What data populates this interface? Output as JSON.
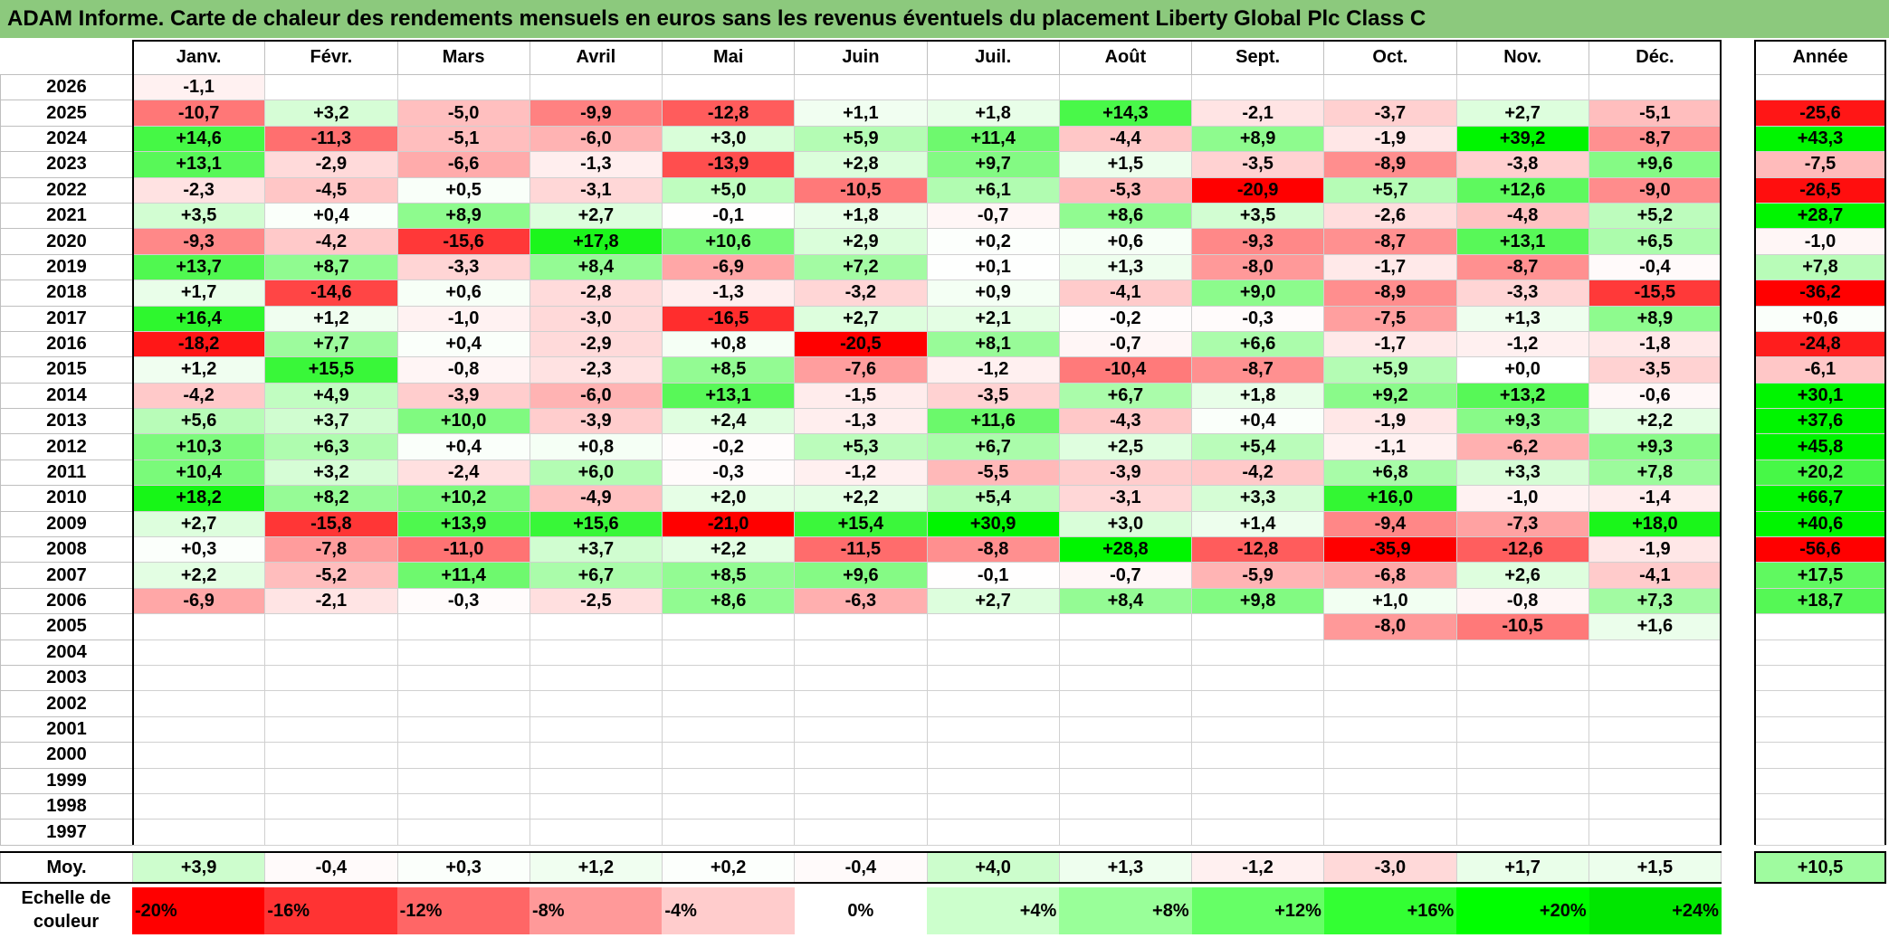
{
  "title": "ADAM Informe. Carte de chaleur des rendements mensuels en euros sans les revenus éventuels du placement Liberty Global Plc Class C",
  "chart_data": {
    "type": "heatmap",
    "title": "ADAM Informe. Carte de chaleur des rendements mensuels en euros sans les revenus éventuels du placement Liberty Global Plc Class C",
    "months": [
      "Janv.",
      "Févr.",
      "Mars",
      "Avril",
      "Mai",
      "Juin",
      "Juil.",
      "Août",
      "Sept.",
      "Oct.",
      "Nov.",
      "Déc."
    ],
    "year_column_label": "Année",
    "rows": [
      {
        "year": "2026",
        "months": [
          "-1,1",
          "",
          "",
          "",
          "",
          "",
          "",
          "",
          "",
          "",
          "",
          ""
        ],
        "annual": ""
      },
      {
        "year": "2025",
        "months": [
          "-10,7",
          "+3,2",
          "-5,0",
          "-9,9",
          "-12,8",
          "+1,1",
          "+1,8",
          "+14,3",
          "-2,1",
          "-3,7",
          "+2,7",
          "-5,1"
        ],
        "annual": "-25,6"
      },
      {
        "year": "2024",
        "months": [
          "+14,6",
          "-11,3",
          "-5,1",
          "-6,0",
          "+3,0",
          "+5,9",
          "+11,4",
          "-4,4",
          "+8,9",
          "-1,9",
          "+39,2",
          "-8,7"
        ],
        "annual": "+43,3"
      },
      {
        "year": "2023",
        "months": [
          "+13,1",
          "-2,9",
          "-6,6",
          "-1,3",
          "-13,9",
          "+2,8",
          "+9,7",
          "+1,5",
          "-3,5",
          "-8,9",
          "-3,8",
          "+9,6"
        ],
        "annual": "-7,5"
      },
      {
        "year": "2022",
        "months": [
          "-2,3",
          "-4,5",
          "+0,5",
          "-3,1",
          "+5,0",
          "-10,5",
          "+6,1",
          "-5,3",
          "-20,9",
          "+5,7",
          "+12,6",
          "-9,0"
        ],
        "annual": "-26,5"
      },
      {
        "year": "2021",
        "months": [
          "+3,5",
          "+0,4",
          "+8,9",
          "+2,7",
          "-0,1",
          "+1,8",
          "-0,7",
          "+8,6",
          "+3,5",
          "-2,6",
          "-4,8",
          "+5,2"
        ],
        "annual": "+28,7"
      },
      {
        "year": "2020",
        "months": [
          "-9,3",
          "-4,2",
          "-15,6",
          "+17,8",
          "+10,6",
          "+2,9",
          "+0,2",
          "+0,6",
          "-9,3",
          "-8,7",
          "+13,1",
          "+6,5"
        ],
        "annual": "-1,0"
      },
      {
        "year": "2019",
        "months": [
          "+13,7",
          "+8,7",
          "-3,3",
          "+8,4",
          "-6,9",
          "+7,2",
          "+0,1",
          "+1,3",
          "-8,0",
          "-1,7",
          "-8,7",
          "-0,4"
        ],
        "annual": "+7,8"
      },
      {
        "year": "2018",
        "months": [
          "+1,7",
          "-14,6",
          "+0,6",
          "-2,8",
          "-1,3",
          "-3,2",
          "+0,9",
          "-4,1",
          "+9,0",
          "-8,9",
          "-3,3",
          "-15,5"
        ],
        "annual": "-36,2"
      },
      {
        "year": "2017",
        "months": [
          "+16,4",
          "+1,2",
          "-1,0",
          "-3,0",
          "-16,5",
          "+2,7",
          "+2,1",
          "-0,2",
          "-0,3",
          "-7,5",
          "+1,3",
          "+8,9"
        ],
        "annual": "+0,6"
      },
      {
        "year": "2016",
        "months": [
          "-18,2",
          "+7,7",
          "+0,4",
          "-2,9",
          "+0,8",
          "-20,5",
          "+8,1",
          "-0,7",
          "+6,6",
          "-1,7",
          "-1,2",
          "-1,8"
        ],
        "annual": "-24,8"
      },
      {
        "year": "2015",
        "months": [
          "+1,2",
          "+15,5",
          "-0,8",
          "-2,3",
          "+8,5",
          "-7,6",
          "-1,2",
          "-10,4",
          "-8,7",
          "+5,9",
          "+0,0",
          "-3,5"
        ],
        "annual": "-6,1"
      },
      {
        "year": "2014",
        "months": [
          "-4,2",
          "+4,9",
          "-3,9",
          "-6,0",
          "+13,1",
          "-1,5",
          "-3,5",
          "+6,7",
          "+1,8",
          "+9,2",
          "+13,2",
          "-0,6"
        ],
        "annual": "+30,1"
      },
      {
        "year": "2013",
        "months": [
          "+5,6",
          "+3,7",
          "+10,0",
          "-3,9",
          "+2,4",
          "-1,3",
          "+11,6",
          "-4,3",
          "+0,4",
          "-1,9",
          "+9,3",
          "+2,2"
        ],
        "annual": "+37,6"
      },
      {
        "year": "2012",
        "months": [
          "+10,3",
          "+6,3",
          "+0,4",
          "+0,8",
          "-0,2",
          "+5,3",
          "+6,7",
          "+2,5",
          "+5,4",
          "-1,1",
          "-6,2",
          "+9,3"
        ],
        "annual": "+45,8"
      },
      {
        "year": "2011",
        "months": [
          "+10,4",
          "+3,2",
          "-2,4",
          "+6,0",
          "-0,3",
          "-1,2",
          "-5,5",
          "-3,9",
          "-4,2",
          "+6,8",
          "+3,3",
          "+7,8"
        ],
        "annual": "+20,2"
      },
      {
        "year": "2010",
        "months": [
          "+18,2",
          "+8,2",
          "+10,2",
          "-4,9",
          "+2,0",
          "+2,2",
          "+5,4",
          "-3,1",
          "+3,3",
          "+16,0",
          "-1,0",
          "-1,4"
        ],
        "annual": "+66,7"
      },
      {
        "year": "2009",
        "months": [
          "+2,7",
          "-15,8",
          "+13,9",
          "+15,6",
          "-21,0",
          "+15,4",
          "+30,9",
          "+3,0",
          "+1,4",
          "-9,4",
          "-7,3",
          "+18,0"
        ],
        "annual": "+40,6"
      },
      {
        "year": "2008",
        "months": [
          "+0,3",
          "-7,8",
          "-11,0",
          "+3,7",
          "+2,2",
          "-11,5",
          "-8,8",
          "+28,8",
          "-12,8",
          "-35,9",
          "-12,6",
          "-1,9"
        ],
        "annual": "-56,6"
      },
      {
        "year": "2007",
        "months": [
          "+2,2",
          "-5,2",
          "+11,4",
          "+6,7",
          "+8,5",
          "+9,6",
          "-0,1",
          "-0,7",
          "-5,9",
          "-6,8",
          "+2,6",
          "-4,1"
        ],
        "annual": "+17,5"
      },
      {
        "year": "2006",
        "months": [
          "-6,9",
          "-2,1",
          "-0,3",
          "-2,5",
          "+8,6",
          "-6,3",
          "+2,7",
          "+8,4",
          "+9,8",
          "+1,0",
          "-0,8",
          "+7,3"
        ],
        "annual": "+18,7"
      },
      {
        "year": "2005",
        "months": [
          "",
          "",
          "",
          "",
          "",
          "",
          "",
          "",
          "",
          "-8,0",
          "-10,5",
          "+1,6"
        ],
        "annual": ""
      },
      {
        "year": "2004",
        "months": [
          "",
          "",
          "",
          "",
          "",
          "",
          "",
          "",
          "",
          "",
          "",
          ""
        ],
        "annual": ""
      },
      {
        "year": "2003",
        "months": [
          "",
          "",
          "",
          "",
          "",
          "",
          "",
          "",
          "",
          "",
          "",
          ""
        ],
        "annual": ""
      },
      {
        "year": "2002",
        "months": [
          "",
          "",
          "",
          "",
          "",
          "",
          "",
          "",
          "",
          "",
          "",
          ""
        ],
        "annual": ""
      },
      {
        "year": "2001",
        "months": [
          "",
          "",
          "",
          "",
          "",
          "",
          "",
          "",
          "",
          "",
          "",
          ""
        ],
        "annual": ""
      },
      {
        "year": "2000",
        "months": [
          "",
          "",
          "",
          "",
          "",
          "",
          "",
          "",
          "",
          "",
          "",
          ""
        ],
        "annual": ""
      },
      {
        "year": "1999",
        "months": [
          "",
          "",
          "",
          "",
          "",
          "",
          "",
          "",
          "",
          "",
          "",
          ""
        ],
        "annual": ""
      },
      {
        "year": "1998",
        "months": [
          "",
          "",
          "",
          "",
          "",
          "",
          "",
          "",
          "",
          "",
          "",
          ""
        ],
        "annual": ""
      },
      {
        "year": "1997",
        "months": [
          "",
          "",
          "",
          "",
          "",
          "",
          "",
          "",
          "",
          "",
          "",
          ""
        ],
        "annual": ""
      }
    ],
    "average": {
      "label": "Moy.",
      "months": [
        "+3,9",
        "-0,4",
        "+0,3",
        "+1,2",
        "+0,2",
        "-0,4",
        "+4,0",
        "+1,3",
        "-1,2",
        "-3,0",
        "+1,7",
        "+1,5"
      ],
      "annual": "+10,5"
    },
    "scale": {
      "label": "Echelle de couleur",
      "items": [
        {
          "label": "-20%",
          "value": -20,
          "color": "#ff0000"
        },
        {
          "label": "-16%",
          "value": -16,
          "color": "#ff3333"
        },
        {
          "label": "-12%",
          "value": -12,
          "color": "#ff6666"
        },
        {
          "label": "-8%",
          "value": -8,
          "color": "#ff9999"
        },
        {
          "label": "-4%",
          "value": -4,
          "color": "#ffcccc"
        },
        {
          "label": "0%",
          "value": 0,
          "color": "#ffffff"
        },
        {
          "label": "+4%",
          "value": 4,
          "color": "#ccffcc"
        },
        {
          "label": "+8%",
          "value": 8,
          "color": "#99ff99"
        },
        {
          "label": "+12%",
          "value": 12,
          "color": "#66ff66"
        },
        {
          "label": "+16%",
          "value": 16,
          "color": "#33ff33"
        },
        {
          "label": "+20%",
          "value": 20,
          "color": "#00ff00"
        },
        {
          "label": "+24%",
          "value": 24,
          "color": "#00e600"
        }
      ]
    }
  }
}
